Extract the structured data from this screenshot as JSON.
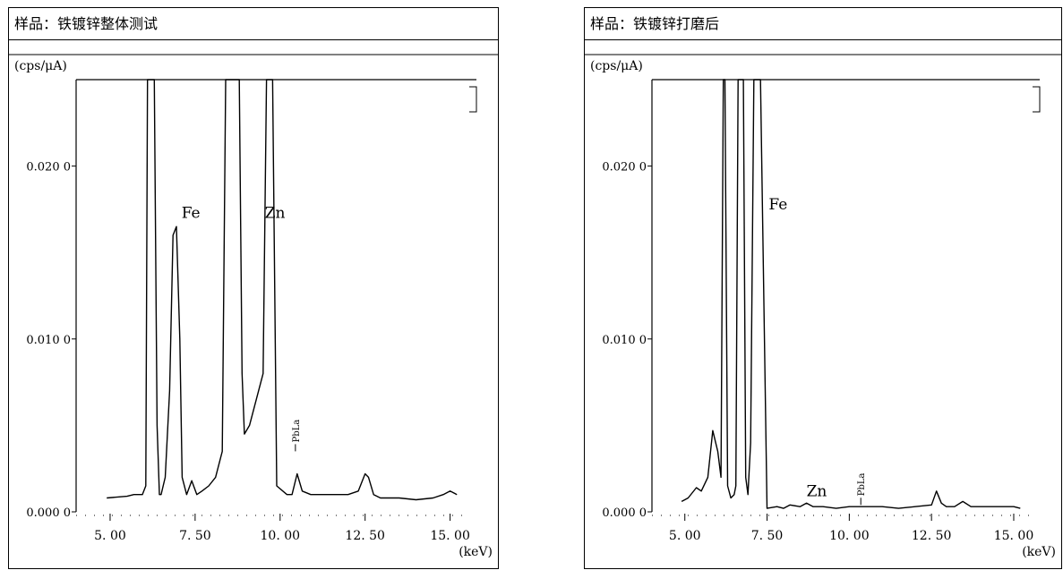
{
  "panels": [
    {
      "title": "样品：铁镀锌整体测试",
      "chart_data": {
        "type": "line",
        "ylabel": "(cps/μA)",
        "xlabel": "(keV)",
        "xlim": [
          4.0,
          15.3
        ],
        "ylim": [
          0.0,
          0.025
        ],
        "x_ticks": [
          5.0,
          7.5,
          10.0,
          12.5,
          15.0
        ],
        "x_tick_labels": [
          "5. 00",
          "7. 50",
          "10. 00",
          "12. 50",
          "15. 00"
        ],
        "y_ticks": [
          0.0,
          0.01,
          0.02
        ],
        "y_tick_labels": [
          "0.000 0",
          "0.010 0",
          "0.020 0"
        ],
        "annotations": [
          {
            "text": "Fe",
            "x": 7.1,
            "y": 0.017
          },
          {
            "text": "Zn",
            "x": 9.55,
            "y": 0.017
          },
          {
            "text": "PbLa",
            "x": 10.45,
            "y": 0.0035
          }
        ],
        "series": [
          {
            "x": [
              4.9,
              5.5,
              5.7,
              5.95,
              6.05,
              6.1,
              6.3,
              6.38,
              6.45,
              6.5,
              6.62,
              6.75,
              6.85,
              6.95,
              7.05,
              7.12,
              7.25,
              7.4,
              7.55,
              7.7,
              7.9,
              8.1,
              8.3,
              8.4,
              8.48,
              8.55,
              8.8,
              8.88,
              8.95,
              9.1,
              9.3,
              9.5,
              9.6,
              9.68,
              9.78,
              9.9,
              10.2,
              10.35,
              10.5,
              10.65,
              10.9,
              11.2,
              11.6,
              12.0,
              12.3,
              12.5,
              12.6,
              12.75,
              12.95,
              13.5,
              14.0,
              14.5,
              14.8,
              15.0,
              15.2
            ],
            "y": [
              0.0008,
              0.0009,
              0.001,
              0.001,
              0.0015,
              0.025,
              0.025,
              0.005,
              0.001,
              0.001,
              0.002,
              0.007,
              0.016,
              0.0165,
              0.01,
              0.002,
              0.001,
              0.0018,
              0.001,
              0.0012,
              0.0015,
              0.002,
              0.0035,
              0.025,
              0.025,
              0.025,
              0.025,
              0.008,
              0.0045,
              0.005,
              0.0065,
              0.008,
              0.025,
              0.025,
              0.025,
              0.0015,
              0.001,
              0.001,
              0.0022,
              0.0012,
              0.001,
              0.001,
              0.001,
              0.001,
              0.0012,
              0.0022,
              0.002,
              0.001,
              0.0008,
              0.0008,
              0.0007,
              0.0008,
              0.001,
              0.0012,
              0.001
            ]
          }
        ]
      }
    },
    {
      "title": "样品：铁镀锌打磨后",
      "chart_data": {
        "type": "line",
        "ylabel": "(cps/μA)",
        "xlabel": "(keV)",
        "xlim": [
          4.0,
          15.3
        ],
        "ylim": [
          0.0,
          0.025
        ],
        "x_ticks": [
          5.0,
          7.5,
          10.0,
          12.5,
          15.0
        ],
        "x_tick_labels": [
          "5. 00",
          "7. 50",
          "10. 00",
          "12. 50",
          "15. 00"
        ],
        "y_ticks": [
          0.0,
          0.01,
          0.02
        ],
        "y_tick_labels": [
          "0.000 0",
          "0.010 0",
          "0.020 0"
        ],
        "annotations": [
          {
            "text": "Fe",
            "x": 7.55,
            "y": 0.0175
          },
          {
            "text": "Zn",
            "x": 8.7,
            "y": 0.0009
          },
          {
            "text": "PbLa",
            "x": 10.35,
            "y": 0.0004
          }
        ],
        "series": [
          {
            "x": [
              4.9,
              5.1,
              5.35,
              5.5,
              5.7,
              5.85,
              6.0,
              6.1,
              6.17,
              6.22,
              6.3,
              6.4,
              6.5,
              6.55,
              6.62,
              6.68,
              6.78,
              6.85,
              6.92,
              7.0,
              7.1,
              7.2,
              7.3,
              7.5,
              7.8,
              8.0,
              8.2,
              8.5,
              8.7,
              8.9,
              9.2,
              9.6,
              10.0,
              10.5,
              11.0,
              11.5,
              12.0,
              12.5,
              12.65,
              12.8,
              12.95,
              13.2,
              13.45,
              13.7,
              14.0,
              14.5,
              15.0,
              15.2
            ],
            "y": [
              0.0006,
              0.0008,
              0.0014,
              0.0012,
              0.002,
              0.0047,
              0.0035,
              0.002,
              0.025,
              0.025,
              0.0015,
              0.0008,
              0.001,
              0.0015,
              0.025,
              0.025,
              0.025,
              0.002,
              0.001,
              0.004,
              0.025,
              0.025,
              0.025,
              0.0002,
              0.0003,
              0.0002,
              0.0004,
              0.0003,
              0.0005,
              0.0003,
              0.0003,
              0.0002,
              0.0003,
              0.0003,
              0.0003,
              0.0002,
              0.0003,
              0.0004,
              0.0012,
              0.0005,
              0.0003,
              0.0003,
              0.0006,
              0.0003,
              0.0003,
              0.0003,
              0.0003,
              0.0002
            ]
          }
        ]
      }
    }
  ]
}
